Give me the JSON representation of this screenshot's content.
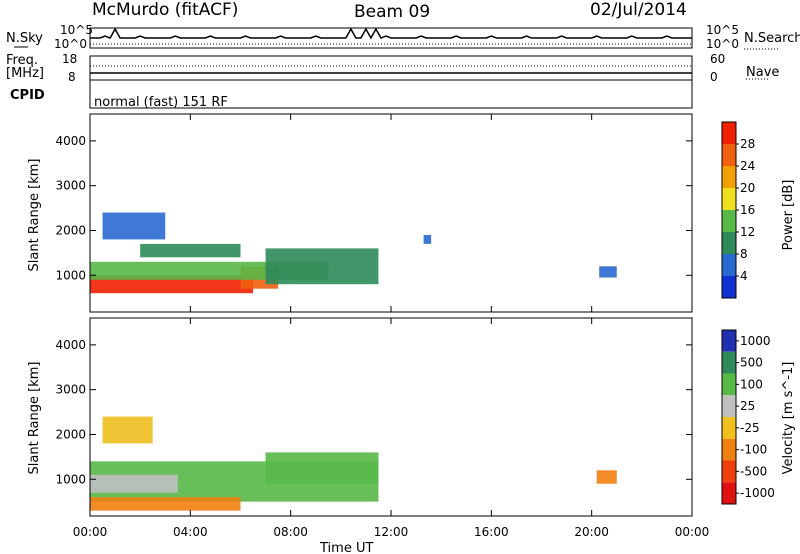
{
  "header": {
    "station": "McMurdo (fitACF)",
    "beam": "Beam 09",
    "date": "02/Jul/2014"
  },
  "top_panels": {
    "nsky_label": "N.Sky",
    "nsearch_label": "N.Search",
    "nsky_ticks": [
      "10^5",
      "10^0"
    ],
    "nsearch_ticks": [
      "10^5",
      "10^0"
    ],
    "freq_label": "Freq.",
    "freq_unit": "[MHz]",
    "freq_ticks": [
      "18",
      "8"
    ],
    "nave_label": "Nave",
    "nave_ticks": [
      "60",
      "0"
    ],
    "cpid_label": "CPID",
    "cpid_text": "normal (fast) 151 RF"
  },
  "colors": {
    "power_scale": [
      "#1030d0",
      "#2a6ad0",
      "#2f8a5a",
      "#58b848",
      "#f0e020",
      "#f0a000",
      "#f06010",
      "#f02000"
    ],
    "velocity_scale": [
      "#2030b0",
      "#2f8a5a",
      "#58b848",
      "#c0c0c0",
      "#f0c020",
      "#f08010",
      "#f04010",
      "#e01010"
    ]
  },
  "chart_data": [
    {
      "type": "heatmap",
      "title": "",
      "xlabel": "",
      "ylabel": "Slant Range [km]",
      "x_ticks": [
        "00:00",
        "04:00",
        "08:00",
        "12:00",
        "16:00",
        "20:00",
        "00:00"
      ],
      "y_ticks": [
        "1000",
        "2000",
        "3000",
        "4000"
      ],
      "ylim": [
        180,
        4600
      ],
      "colorbar": {
        "label": "Power [dB]",
        "ticks": [
          "4",
          "8",
          "12",
          "16",
          "20",
          "24",
          "28"
        ]
      },
      "regions": [
        {
          "t_start": 0.0,
          "t_end": 6.5,
          "r_min": 600,
          "r_max": 1000,
          "value": 28
        },
        {
          "t_start": 6.0,
          "t_end": 7.5,
          "r_min": 700,
          "r_max": 1200,
          "value": 24
        },
        {
          "t_start": 0.0,
          "t_end": 9.5,
          "r_min": 900,
          "r_max": 1300,
          "value": 12
        },
        {
          "t_start": 7.0,
          "t_end": 11.5,
          "r_min": 800,
          "r_max": 1600,
          "value": 8
        },
        {
          "t_start": 0.5,
          "t_end": 3.0,
          "r_min": 1800,
          "r_max": 2400,
          "value": 6
        },
        {
          "t_start": 2.0,
          "t_end": 6.0,
          "r_min": 1400,
          "r_max": 1700,
          "value": 8
        },
        {
          "t_start": 20.3,
          "t_end": 21.0,
          "r_min": 950,
          "r_max": 1200,
          "value": 6
        },
        {
          "t_start": 13.3,
          "t_end": 13.6,
          "r_min": 1700,
          "r_max": 1900,
          "value": 4
        }
      ]
    },
    {
      "type": "heatmap",
      "title": "",
      "xlabel": "Time UT",
      "ylabel": "Slant Range [km]",
      "x_ticks": [
        "00:00",
        "04:00",
        "08:00",
        "12:00",
        "16:00",
        "20:00",
        "00:00"
      ],
      "y_ticks": [
        "1000",
        "2000",
        "3000",
        "4000"
      ],
      "ylim": [
        180,
        4600
      ],
      "colorbar": {
        "label": "Velocity [m s^-1]",
        "ticks": [
          "1000",
          "500",
          "100",
          "25",
          "-25",
          "-100",
          "-500",
          "-1000"
        ]
      },
      "regions": [
        {
          "t_start": 0.0,
          "t_end": 11.5,
          "r_min": 500,
          "r_max": 1400,
          "value": 50
        },
        {
          "t_start": 0.0,
          "t_end": 3.5,
          "r_min": 700,
          "r_max": 1100,
          "value": 0
        },
        {
          "t_start": 7.0,
          "t_end": 11.5,
          "r_min": 900,
          "r_max": 1600,
          "value": 80
        },
        {
          "t_start": 0.5,
          "t_end": 2.5,
          "r_min": 1800,
          "r_max": 2400,
          "value": -100
        },
        {
          "t_start": 0.0,
          "t_end": 6.0,
          "r_min": 300,
          "r_max": 600,
          "value": -200
        },
        {
          "t_start": 20.2,
          "t_end": 21.0,
          "r_min": 900,
          "r_max": 1200,
          "value": -400
        }
      ]
    }
  ]
}
